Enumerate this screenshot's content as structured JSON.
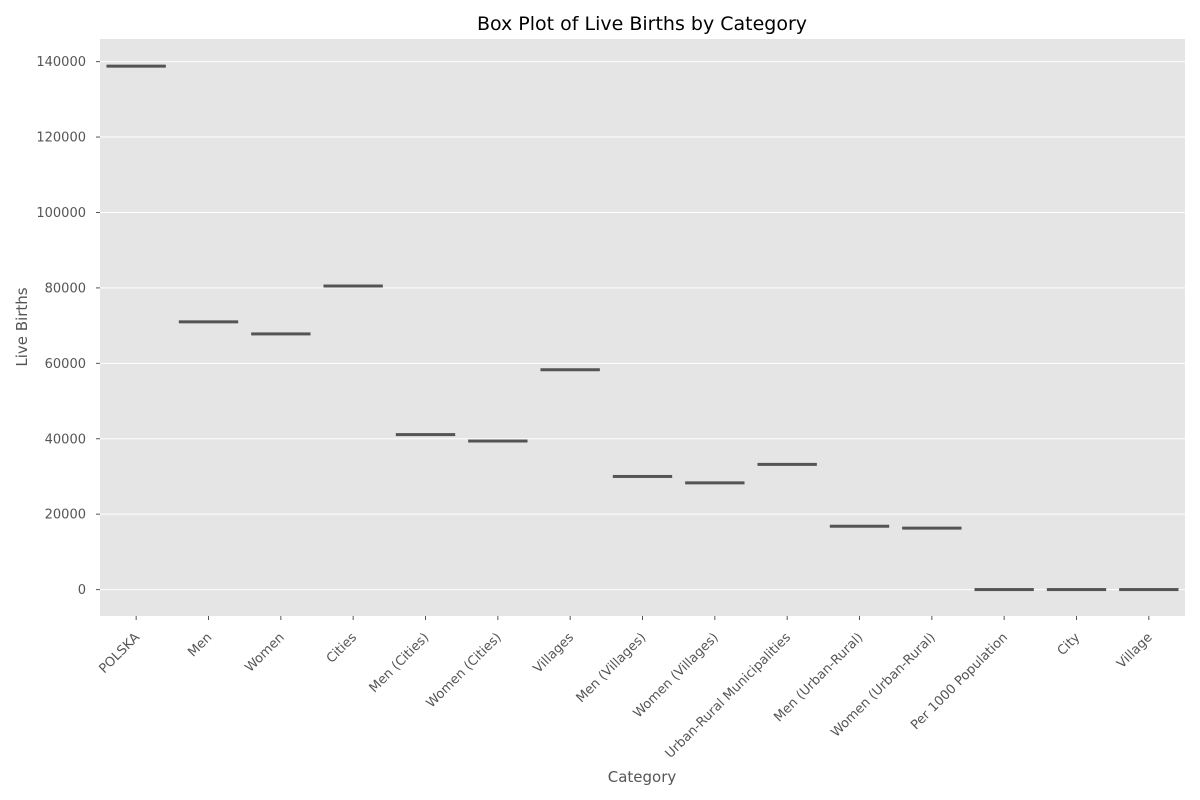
{
  "chart_data": {
    "type": "box",
    "title": "Box Plot of Live Births by Category",
    "xlabel": "Category",
    "ylabel": "Live Births",
    "ylim": [
      -7000,
      146000
    ],
    "yticks": [
      0,
      20000,
      40000,
      60000,
      80000,
      100000,
      120000,
      140000
    ],
    "grid": true,
    "background": "#e5e5e5",
    "box_color": "#3a78b0",
    "line_color": "#555555",
    "categories": [
      "POLSKA",
      "Men",
      "Women",
      "Cities",
      "Men (Cities)",
      "Women (Cities)",
      "Villages",
      "Men (Villages)",
      "Women (Villages)",
      "Urban-Rural Municipalities",
      "Men (Urban-Rural)",
      "Women (Urban-Rural)",
      "Per 1000 Population",
      "City",
      "Village"
    ],
    "values": [
      138800,
      71000,
      67800,
      80500,
      41100,
      39400,
      58300,
      30000,
      28300,
      33200,
      16800,
      16300,
      7,
      7,
      8
    ]
  }
}
